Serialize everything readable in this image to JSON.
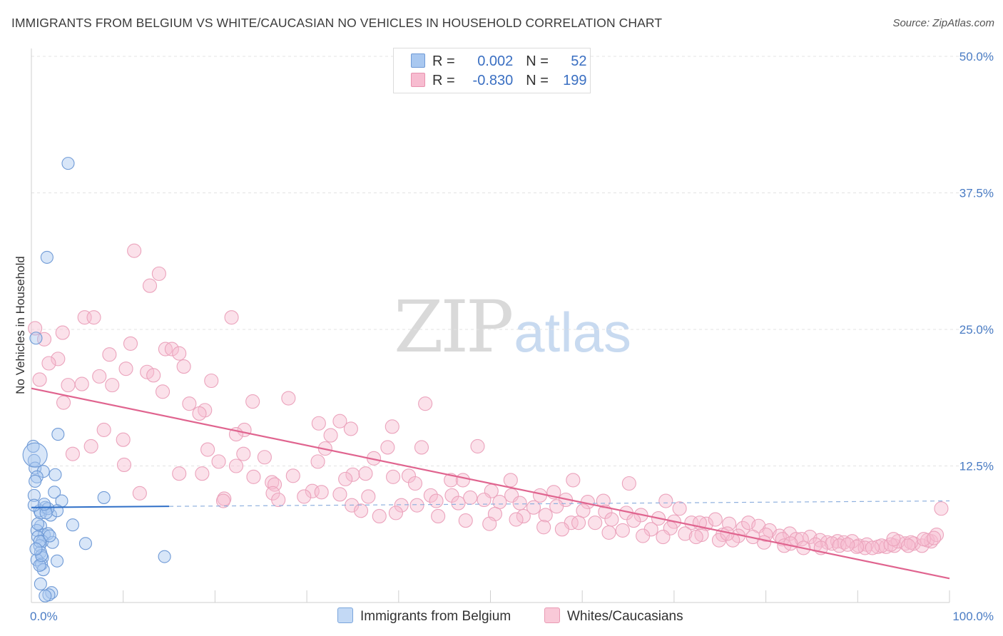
{
  "title": "IMMIGRANTS FROM BELGIUM VS WHITE/CAUCASIAN NO VEHICLES IN HOUSEHOLD CORRELATION CHART",
  "source": "Source: ZipAtlas.com",
  "watermark": {
    "zip": "ZIP",
    "atlas": "atlas"
  },
  "legend": {
    "rows": [
      {
        "r_label": "R =",
        "r_value": "0.002",
        "n_label": "N =",
        "n_value": "52",
        "color": "#a9c8f0",
        "border": "#6f9ad6"
      },
      {
        "r_label": "R =",
        "r_value": "-0.830",
        "n_label": "N =",
        "n_value": "199",
        "color": "#f7bcd0",
        "border": "#e892ae"
      }
    ]
  },
  "bottom_legend": [
    {
      "label": "Immigrants from Belgium",
      "color": "#c3d9f5",
      "border": "#7aa5dc"
    },
    {
      "label": "Whites/Caucasians",
      "color": "#f9c9d8",
      "border": "#e99ab4"
    }
  ],
  "chart_data": {
    "type": "scatter",
    "title": "IMMIGRANTS FROM BELGIUM VS WHITE/CAUCASIAN NO VEHICLES IN HOUSEHOLD CORRELATION CHART",
    "xlabel": "",
    "ylabel": "No Vehicles in Household",
    "xlim": [
      0,
      100
    ],
    "ylim": [
      0,
      50
    ],
    "x_tick_labels": [
      "0.0%",
      "100.0%"
    ],
    "y_ticks": [
      12.5,
      25.0,
      37.5,
      50.0
    ],
    "y_tick_labels": [
      "12.5%",
      "25.0%",
      "37.5%",
      "50.0%"
    ],
    "grid": true,
    "colors": {
      "blue": "#6f9ad6",
      "blue_line": "#2f6fc7",
      "pink": "#e892ae",
      "pink_line": "#e0648f"
    },
    "series": [
      {
        "name": "Immigrants from Belgium",
        "color": "#6f9ad6",
        "trend": {
          "x0": 0,
          "y0": 8.7,
          "x1": 15,
          "y1": 8.8,
          "dash_to_x": 100,
          "dash_y": 9.3
        },
        "points": [
          [
            4.0,
            40.2
          ],
          [
            1.7,
            31.6
          ],
          [
            0.5,
            24.2
          ],
          [
            0.2,
            14.3
          ],
          [
            0.3,
            13.0
          ],
          [
            0.4,
            12.3
          ],
          [
            1.3,
            12.0
          ],
          [
            0.6,
            11.5
          ],
          [
            2.6,
            11.7
          ],
          [
            0.4,
            11.1
          ],
          [
            2.9,
            15.4
          ],
          [
            0.3,
            9.8
          ],
          [
            2.5,
            10.1
          ],
          [
            3.3,
            9.3
          ],
          [
            7.9,
            9.6
          ],
          [
            1.5,
            8.7
          ],
          [
            0.9,
            8.4
          ],
          [
            2.1,
            8.0
          ],
          [
            2.8,
            8.4
          ],
          [
            1.0,
            8.2
          ],
          [
            1.8,
            8.6
          ],
          [
            4.5,
            7.1
          ],
          [
            1.0,
            7.0
          ],
          [
            0.6,
            6.6
          ],
          [
            1.4,
            6.2
          ],
          [
            1.8,
            6.3
          ],
          [
            0.7,
            6.0
          ],
          [
            1.2,
            5.6
          ],
          [
            2.3,
            5.5
          ],
          [
            5.9,
            5.4
          ],
          [
            0.9,
            5.2
          ],
          [
            1.0,
            4.6
          ],
          [
            1.2,
            4.1
          ],
          [
            0.6,
            3.9
          ],
          [
            1.1,
            3.5
          ],
          [
            2.8,
            3.8
          ],
          [
            1.3,
            3.0
          ],
          [
            0.9,
            3.4
          ],
          [
            14.5,
            4.2
          ],
          [
            1.0,
            1.7
          ],
          [
            2.2,
            0.9
          ],
          [
            1.9,
            0.7
          ],
          [
            1.5,
            0.6
          ],
          [
            0.4,
            13.5
          ],
          [
            0.3,
            8.9
          ],
          [
            1.6,
            8.2
          ],
          [
            0.9,
            5.6
          ],
          [
            0.7,
            7.2
          ],
          [
            1.1,
            4.3
          ],
          [
            2.0,
            6.1
          ],
          [
            1.4,
            9.0
          ],
          [
            0.5,
            4.9
          ]
        ]
      },
      {
        "name": "Whites/Caucasians",
        "color": "#e892ae",
        "trend": {
          "x0": 0,
          "y0": 19.6,
          "x1": 100,
          "y1": 2.2
        },
        "points": [
          [
            0.4,
            25.1
          ],
          [
            3.4,
            24.7
          ],
          [
            1.4,
            24.1
          ],
          [
            11.2,
            32.2
          ],
          [
            13.9,
            30.1
          ],
          [
            12.9,
            29.0
          ],
          [
            5.8,
            26.1
          ],
          [
            6.8,
            26.1
          ],
          [
            21.8,
            26.1
          ],
          [
            10.8,
            23.7
          ],
          [
            14.6,
            23.2
          ],
          [
            15.3,
            23.2
          ],
          [
            8.5,
            22.7
          ],
          [
            2.9,
            22.3
          ],
          [
            16.1,
            22.8
          ],
          [
            1.9,
            21.9
          ],
          [
            10.3,
            21.4
          ],
          [
            16.6,
            21.6
          ],
          [
            12.6,
            21.1
          ],
          [
            7.4,
            20.7
          ],
          [
            13.3,
            20.8
          ],
          [
            0.9,
            20.4
          ],
          [
            19.6,
            20.3
          ],
          [
            5.5,
            20.0
          ],
          [
            4.0,
            19.9
          ],
          [
            8.8,
            19.9
          ],
          [
            14.3,
            19.3
          ],
          [
            28.0,
            18.7
          ],
          [
            24.1,
            18.4
          ],
          [
            17.2,
            18.2
          ],
          [
            3.5,
            18.3
          ],
          [
            42.9,
            18.2
          ],
          [
            18.9,
            17.6
          ],
          [
            18.3,
            17.3
          ],
          [
            31.3,
            16.4
          ],
          [
            33.6,
            16.6
          ],
          [
            39.3,
            16.1
          ],
          [
            7.9,
            15.8
          ],
          [
            34.8,
            15.9
          ],
          [
            23.2,
            15.8
          ],
          [
            22.3,
            15.4
          ],
          [
            32.6,
            15.3
          ],
          [
            10.0,
            14.9
          ],
          [
            6.5,
            14.3
          ],
          [
            32.0,
            14.1
          ],
          [
            38.8,
            14.2
          ],
          [
            42.5,
            14.2
          ],
          [
            48.6,
            14.3
          ],
          [
            19.2,
            14.0
          ],
          [
            23.1,
            13.6
          ],
          [
            4.5,
            13.6
          ],
          [
            25.4,
            13.3
          ],
          [
            37.3,
            13.2
          ],
          [
            20.4,
            12.9
          ],
          [
            31.2,
            12.9
          ],
          [
            10.1,
            12.6
          ],
          [
            22.3,
            12.5
          ],
          [
            28.5,
            11.6
          ],
          [
            35.0,
            11.7
          ],
          [
            16.1,
            11.8
          ],
          [
            24.2,
            11.5
          ],
          [
            26.2,
            11.0
          ],
          [
            18.6,
            11.8
          ],
          [
            36.4,
            11.8
          ],
          [
            34.2,
            11.3
          ],
          [
            26.5,
            10.8
          ],
          [
            39.4,
            11.5
          ],
          [
            41.1,
            11.6
          ],
          [
            30.6,
            10.2
          ],
          [
            41.8,
            10.9
          ],
          [
            45.7,
            11.2
          ],
          [
            47.0,
            11.2
          ],
          [
            52.2,
            11.2
          ],
          [
            59.0,
            11.2
          ],
          [
            65.1,
            10.9
          ],
          [
            11.8,
            10.0
          ],
          [
            26.3,
            10.0
          ],
          [
            29.7,
            9.7
          ],
          [
            31.6,
            10.1
          ],
          [
            33.6,
            9.9
          ],
          [
            36.7,
            9.7
          ],
          [
            43.5,
            9.8
          ],
          [
            45.8,
            9.8
          ],
          [
            47.8,
            9.6
          ],
          [
            50.1,
            10.2
          ],
          [
            52.3,
            9.8
          ],
          [
            55.4,
            9.8
          ],
          [
            56.9,
            10.1
          ],
          [
            58.2,
            9.4
          ],
          [
            60.6,
            9.2
          ],
          [
            62.3,
            9.3
          ],
          [
            69.1,
            9.3
          ],
          [
            21.0,
            9.5
          ],
          [
            20.9,
            9.3
          ],
          [
            26.9,
            9.4
          ],
          [
            34.9,
            8.9
          ],
          [
            40.3,
            8.9
          ],
          [
            42.0,
            8.9
          ],
          [
            44.1,
            9.3
          ],
          [
            46.5,
            9.1
          ],
          [
            49.3,
            9.4
          ],
          [
            51.0,
            9.2
          ],
          [
            53.2,
            9.1
          ],
          [
            54.7,
            8.7
          ],
          [
            57.2,
            8.8
          ],
          [
            60.1,
            8.4
          ],
          [
            62.5,
            8.3
          ],
          [
            64.8,
            8.2
          ],
          [
            66.4,
            8.0
          ],
          [
            68.3,
            7.7
          ],
          [
            70.0,
            7.4
          ],
          [
            70.6,
            8.6
          ],
          [
            71.9,
            7.3
          ],
          [
            73.5,
            7.2
          ],
          [
            74.5,
            7.6
          ],
          [
            76.0,
            7.2
          ],
          [
            77.5,
            6.8
          ],
          [
            78.1,
            7.3
          ],
          [
            79.2,
            7.0
          ],
          [
            80.4,
            6.6
          ],
          [
            81.5,
            6.1
          ],
          [
            82.6,
            6.3
          ],
          [
            83.3,
            5.8
          ],
          [
            84.8,
            6.0
          ],
          [
            85.9,
            5.7
          ],
          [
            86.7,
            5.5
          ],
          [
            87.8,
            5.6
          ],
          [
            88.5,
            5.5
          ],
          [
            90.1,
            5.2
          ],
          [
            91.0,
            5.3
          ],
          [
            92.2,
            5.1
          ],
          [
            93.1,
            5.1
          ],
          [
            94.0,
            5.2
          ],
          [
            95.2,
            5.4
          ],
          [
            96.1,
            5.4
          ],
          [
            97.0,
            5.2
          ],
          [
            98.0,
            5.6
          ],
          [
            99.1,
            8.6
          ],
          [
            35.9,
            8.4
          ],
          [
            37.9,
            7.9
          ],
          [
            39.7,
            8.2
          ],
          [
            44.3,
            7.9
          ],
          [
            50.5,
            8.1
          ],
          [
            53.6,
            7.9
          ],
          [
            56.0,
            8.0
          ],
          [
            58.8,
            7.3
          ],
          [
            61.4,
            7.3
          ],
          [
            63.2,
            7.6
          ],
          [
            65.6,
            7.5
          ],
          [
            67.5,
            6.7
          ],
          [
            69.6,
            6.8
          ],
          [
            71.2,
            6.3
          ],
          [
            73.0,
            6.2
          ],
          [
            75.3,
            6.2
          ],
          [
            77.0,
            6.1
          ],
          [
            78.6,
            6.0
          ],
          [
            80.0,
            6.2
          ],
          [
            81.8,
            5.8
          ],
          [
            83.9,
            5.8
          ],
          [
            85.4,
            5.3
          ],
          [
            87.2,
            5.4
          ],
          [
            89.4,
            5.6
          ],
          [
            90.8,
            5.0
          ],
          [
            92.6,
            5.2
          ],
          [
            94.4,
            5.6
          ],
          [
            95.8,
            5.5
          ],
          [
            97.6,
            5.7
          ],
          [
            98.6,
            6.2
          ],
          [
            47.3,
            7.5
          ],
          [
            49.9,
            7.2
          ],
          [
            52.8,
            7.6
          ],
          [
            55.8,
            6.9
          ],
          [
            57.8,
            6.7
          ],
          [
            59.6,
            7.3
          ],
          [
            62.9,
            6.4
          ],
          [
            64.4,
            6.6
          ],
          [
            66.6,
            6.1
          ],
          [
            68.8,
            6.0
          ],
          [
            72.4,
            6.0
          ],
          [
            74.9,
            5.7
          ],
          [
            76.4,
            5.7
          ],
          [
            79.8,
            5.5
          ],
          [
            82.0,
            5.2
          ],
          [
            84.1,
            5.0
          ],
          [
            86.0,
            5.0
          ],
          [
            88.0,
            5.2
          ],
          [
            89.9,
            5.1
          ],
          [
            91.6,
            5.0
          ],
          [
            93.6,
            5.3
          ],
          [
            95.5,
            5.2
          ],
          [
            97.2,
            5.8
          ],
          [
            98.3,
            5.9
          ],
          [
            72.8,
            7.3
          ],
          [
            75.8,
            6.3
          ],
          [
            82.7,
            5.4
          ],
          [
            88.9,
            5.3
          ],
          [
            93.9,
            5.8
          ]
        ]
      }
    ]
  }
}
